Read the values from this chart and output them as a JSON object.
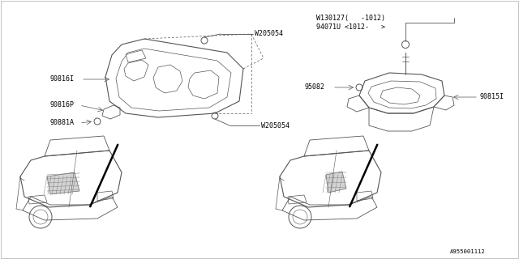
{
  "bg_color": "#ffffff",
  "line_color": "#555555",
  "text_color": "#000000",
  "fig_width": 6.4,
  "fig_height": 3.2,
  "dpi": 100,
  "font_size": 6.0,
  "small_font": 5.2,
  "labels": {
    "W205054_top": "W205054",
    "W205054_bot": "W205054",
    "90816I": "90816I",
    "90816P": "90816P",
    "90881A": "90881A",
    "W130127": "W130127(   -1012)",
    "94071U": "94071U <1012-   >",
    "95082": "95082",
    "90815I": "90815I",
    "part_num": "A955001112"
  }
}
